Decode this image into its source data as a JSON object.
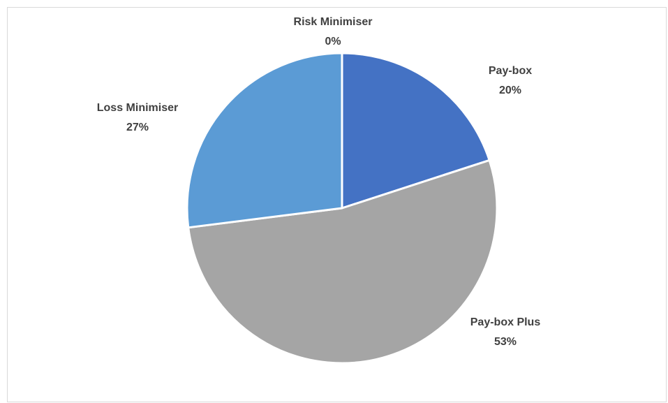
{
  "chart_data": {
    "type": "pie",
    "title": "",
    "categories": [
      "Pay-box",
      "Pay-box Plus",
      "Loss Minimiser",
      "Risk Minimiser"
    ],
    "values": [
      20,
      53,
      27,
      0
    ],
    "labels": [
      "20%",
      "53%",
      "27%",
      "0%"
    ],
    "colors": [
      "#4472c4",
      "#a5a5a5",
      "#5b9bd5",
      "#ffc000"
    ],
    "start_angle_deg": 0,
    "direction": "clockwise",
    "legend": "none",
    "data_labels": "outside"
  }
}
